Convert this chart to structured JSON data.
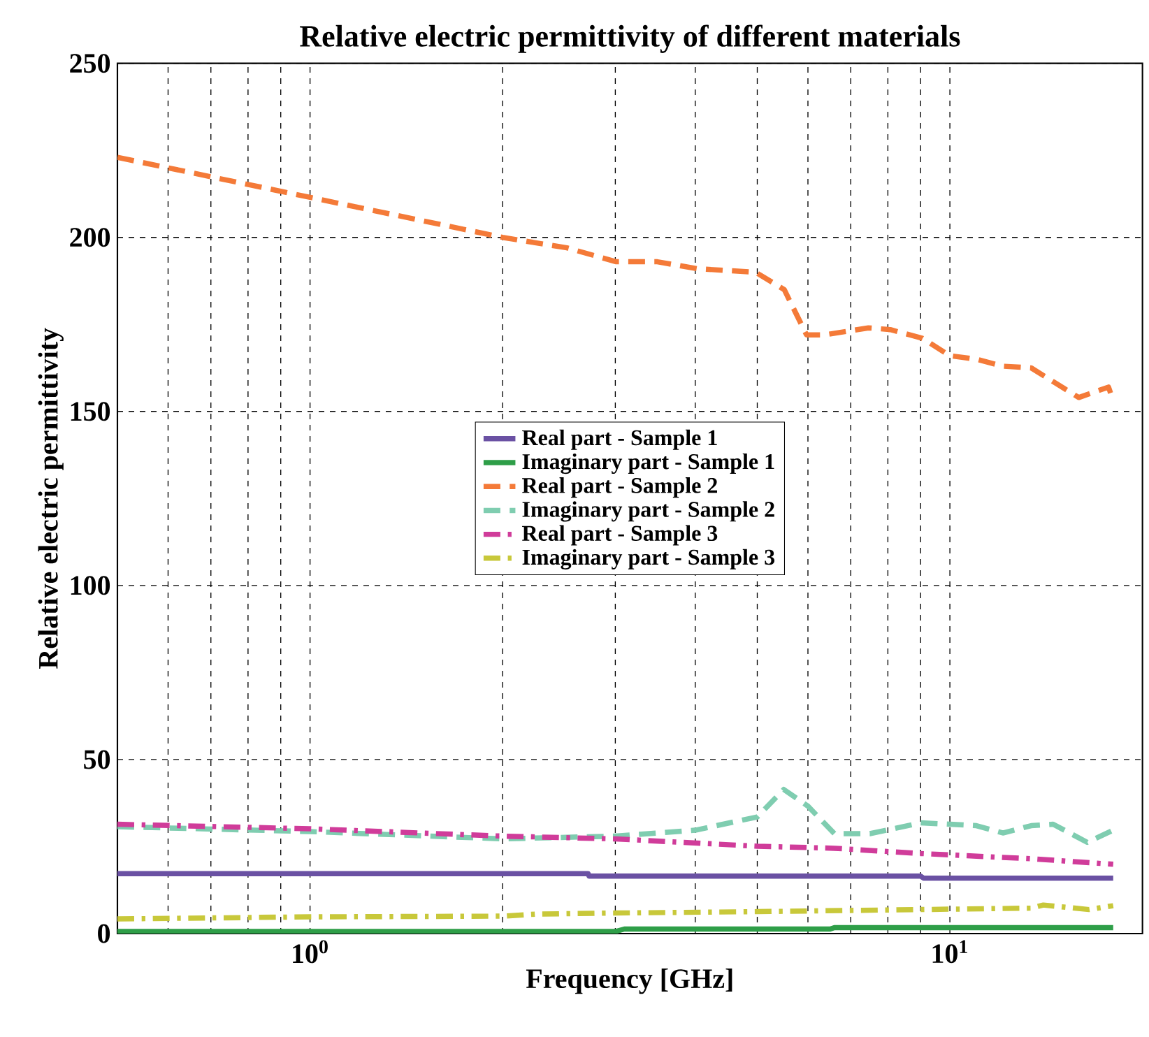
{
  "chart_data": {
    "type": "line",
    "title": "Relative electric permittivity of different materials",
    "xlabel": "Frequency [GHz]",
    "ylabel": "Relative electric permittivity",
    "log": "x",
    "xlim": [
      0.5,
      20
    ],
    "ylim": [
      0,
      250
    ],
    "xticks": [
      {
        "value": 1,
        "label": "10$^{0}$"
      },
      {
        "value": 10,
        "label": "10$^{1}$"
      }
    ],
    "yticks": [
      0,
      50,
      100,
      150,
      200,
      250
    ],
    "grid": true,
    "legend": "center",
    "series": [
      {
        "name": "Real part - Sample 1",
        "color": "#6a51a3",
        "line_style": "solid",
        "x": [
          0.5,
          2.72,
          2.73,
          9,
          9.1,
          18
        ],
        "values": [
          17.2,
          17.2,
          16.5,
          16.5,
          15.9,
          15.9
        ]
      },
      {
        "name": "Imaginary part - Sample 1",
        "color": "#2e9e48",
        "line_style": "solid",
        "x": [
          0.5,
          3,
          3.1,
          6.5,
          6.6,
          18
        ],
        "values": [
          0.6,
          0.6,
          1.3,
          1.3,
          1.7,
          1.7
        ]
      },
      {
        "name": "Real part - Sample 2",
        "color": "#f47a38",
        "line_style": "dashed",
        "x": [
          0.5,
          2,
          2.52,
          3.01,
          3.49,
          4.03,
          4.97,
          5.51,
          5.97,
          6.37,
          7.46,
          8.07,
          9.06,
          10,
          11,
          12.1,
          13.4,
          15.9,
          17.7,
          18
        ],
        "values": [
          223,
          200,
          197,
          193,
          193,
          191,
          190,
          185,
          172,
          172,
          174,
          173.5,
          171,
          166,
          165,
          163,
          162.5,
          154,
          157,
          153
        ]
      },
      {
        "name": "Imaginary part - Sample 2",
        "color": "#7fcdb0",
        "line_style": "dashed",
        "x": [
          0.5,
          1,
          2,
          3,
          4,
          5,
          5.5,
          6,
          6.6,
          7.5,
          9,
          10,
          11,
          12.1,
          13.4,
          14.5,
          16.4,
          18
        ],
        "values": [
          30.7,
          29.3,
          27.2,
          28,
          29.7,
          33.5,
          41.4,
          36.6,
          28.7,
          28.7,
          31.8,
          31.4,
          31,
          28.9,
          31,
          31.4,
          26.2,
          29.7
        ]
      },
      {
        "name": "Real part - Sample 3",
        "color": "#d03c9a",
        "line_style": "dashdot",
        "x": [
          0.5,
          1,
          2,
          3,
          5,
          6.6,
          9,
          10,
          13.4,
          18
        ],
        "values": [
          31.4,
          30.1,
          28,
          27.2,
          25.1,
          24.5,
          23,
          22.6,
          21.5,
          19.9
        ]
      },
      {
        "name": "Imaginary part - Sample 3",
        "color": "#c8c83a",
        "line_style": "dashdot",
        "x": [
          0.5,
          1,
          2,
          2.26,
          3,
          5,
          9,
          13.4,
          14,
          16.5,
          18
        ],
        "values": [
          4.2,
          4.8,
          5,
          5.6,
          5.9,
          6.3,
          6.9,
          7.3,
          8.2,
          6.9,
          8
        ]
      }
    ]
  }
}
